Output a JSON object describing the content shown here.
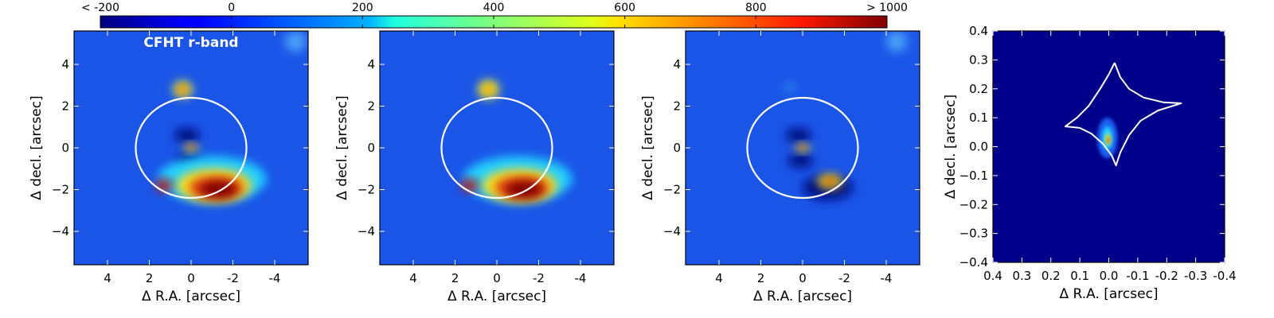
{
  "chart_data": {
    "type": "heatmap",
    "figure_description_free": true,
    "colormap": "jet",
    "colorbar": {
      "min": -200,
      "max": 1000,
      "ticks": [
        {
          "value": -200,
          "label": "< -200"
        },
        {
          "value": 0,
          "label": "0"
        },
        {
          "value": 200,
          "label": "200"
        },
        {
          "value": 400,
          "label": "400"
        },
        {
          "value": 600,
          "label": "600"
        },
        {
          "value": 800,
          "label": "800"
        },
        {
          "value": 1000,
          "label": "> 1000"
        }
      ]
    },
    "panels": [
      {
        "id": "observed",
        "title": "CFHT r-band",
        "xlabel": "Δ R.A. [arcsec]",
        "ylabel": "Δ decl. [arcsec]",
        "xlim": [
          5.6,
          -5.6
        ],
        "ylim": [
          -5.6,
          5.6
        ],
        "xticks": [
          4,
          2,
          0,
          -2,
          -4
        ],
        "yticks": [
          4,
          2,
          0,
          -2,
          -4
        ],
        "background": "#1a55e8",
        "circle": {
          "cx": 0,
          "cy": 0,
          "r": 2.5
        },
        "features": [
          {
            "x": 0.4,
            "y": 2.8,
            "rx": 0.45,
            "ry": 0.4,
            "color": "#f0f020"
          },
          {
            "x": 0.4,
            "y": 2.8,
            "rx": 0.2,
            "ry": 0.18,
            "color": "#e03010"
          },
          {
            "x": 0.2,
            "y": 0.6,
            "rx": 0.6,
            "ry": 0.35,
            "color": "#000a80"
          },
          {
            "x": 0.1,
            "y": -0.6,
            "rx": 0.6,
            "ry": 0.35,
            "color": "#000a80"
          },
          {
            "x": 0.0,
            "y": 0.0,
            "rx": 0.35,
            "ry": 0.2,
            "color": "#f0e020"
          },
          {
            "x": 0.0,
            "y": 0.0,
            "rx": 0.15,
            "ry": 0.1,
            "color": "#c01010"
          },
          {
            "x": -1.0,
            "y": -1.5,
            "rx": 2.6,
            "ry": 1.1,
            "color": "#22d0ff"
          },
          {
            "x": -1.1,
            "y": -1.8,
            "rx": 1.8,
            "ry": 0.8,
            "color": "#f8e020"
          },
          {
            "x": -1.2,
            "y": -1.9,
            "rx": 1.3,
            "ry": 0.55,
            "color": "#e04010"
          },
          {
            "x": -1.3,
            "y": -2.0,
            "rx": 0.9,
            "ry": 0.4,
            "color": "#800000"
          },
          {
            "x": 1.3,
            "y": -1.8,
            "rx": 0.4,
            "ry": 0.3,
            "color": "#c01010"
          },
          {
            "x": -5.0,
            "y": 5.1,
            "rx": 0.5,
            "ry": 0.5,
            "color": "#4aa0f8"
          }
        ]
      },
      {
        "id": "model",
        "title": "",
        "xlabel": "Δ R.A. [arcsec]",
        "ylabel": "Δ decl. [arcsec]",
        "xlim": [
          5.6,
          -5.6
        ],
        "ylim": [
          -5.6,
          5.6
        ],
        "xticks": [
          4,
          2,
          0,
          -2,
          -4
        ],
        "yticks": [
          4,
          2,
          0,
          -2,
          -4
        ],
        "background": "#1a55e8",
        "circle": {
          "cx": 0,
          "cy": 0,
          "r": 2.5
        },
        "features": [
          {
            "x": 0.4,
            "y": 2.8,
            "rx": 0.5,
            "ry": 0.45,
            "color": "#f0f020"
          },
          {
            "x": 0.4,
            "y": 2.8,
            "rx": 0.25,
            "ry": 0.2,
            "color": "#f08010"
          },
          {
            "x": -1.0,
            "y": -1.5,
            "rx": 2.6,
            "ry": 1.1,
            "color": "#22d0ff"
          },
          {
            "x": -1.1,
            "y": -1.8,
            "rx": 1.8,
            "ry": 0.8,
            "color": "#f8e020"
          },
          {
            "x": -1.2,
            "y": -1.9,
            "rx": 1.3,
            "ry": 0.55,
            "color": "#e04010"
          },
          {
            "x": -1.3,
            "y": -2.0,
            "rx": 0.9,
            "ry": 0.4,
            "color": "#800000"
          },
          {
            "x": 1.3,
            "y": -1.8,
            "rx": 0.4,
            "ry": 0.3,
            "color": "#c01010"
          }
        ]
      },
      {
        "id": "residual",
        "title": "",
        "xlabel": "Δ R.A. [arcsec]",
        "ylabel": "Δ decl. [arcsec]",
        "xlim": [
          5.6,
          -5.6
        ],
        "ylim": [
          -5.6,
          5.6
        ],
        "xticks": [
          4,
          2,
          0,
          -2,
          -4
        ],
        "yticks": [
          4,
          2,
          0,
          -2,
          -4
        ],
        "background": "#1a55e8",
        "circle": {
          "cx": 0,
          "cy": 0,
          "r": 2.5
        },
        "features": [
          {
            "x": 0.2,
            "y": 0.6,
            "rx": 0.6,
            "ry": 0.35,
            "color": "#000a80"
          },
          {
            "x": 0.1,
            "y": -0.6,
            "rx": 0.6,
            "ry": 0.35,
            "color": "#000a80"
          },
          {
            "x": 0.0,
            "y": 0.0,
            "rx": 0.35,
            "ry": 0.2,
            "color": "#f0e020"
          },
          {
            "x": 0.0,
            "y": 0.0,
            "rx": 0.15,
            "ry": 0.1,
            "color": "#c01010"
          },
          {
            "x": -1.2,
            "y": -1.9,
            "rx": 1.2,
            "ry": 0.6,
            "color": "#000a80"
          },
          {
            "x": -1.3,
            "y": -1.6,
            "rx": 0.6,
            "ry": 0.35,
            "color": "#f0e020"
          },
          {
            "x": -1.3,
            "y": -1.6,
            "rx": 0.25,
            "ry": 0.15,
            "color": "#c01010"
          },
          {
            "x": 0.6,
            "y": 2.9,
            "rx": 0.3,
            "ry": 0.25,
            "color": "#2a80f0"
          },
          {
            "x": -4.5,
            "y": 5.1,
            "rx": 0.5,
            "ry": 0.5,
            "color": "#4aa0f8"
          }
        ]
      },
      {
        "id": "source",
        "title": "",
        "xlabel": "Δ R.A. [arcsec]",
        "ylabel": "Δ decl. [arcsec]",
        "xlim": [
          0.4,
          -0.4
        ],
        "ylim": [
          -0.4,
          0.4
        ],
        "xticks": [
          0.4,
          0.3,
          0.2,
          0.1,
          0.0,
          -0.1,
          -0.2,
          -0.3,
          -0.4
        ],
        "xtick_labels": [
          "0.4",
          "0.3",
          "0.2",
          "0.1",
          "0.0",
          "-0.1",
          "-0.2",
          "-0.3",
          "-0.4"
        ],
        "yticks": [
          0.4,
          0.3,
          0.2,
          0.1,
          0.0,
          -0.1,
          -0.2,
          -0.3,
          -0.4
        ],
        "ytick_labels": [
          "0.4",
          "0.3",
          "0.2",
          "0.1",
          "0.0",
          "−0.1",
          "−0.2",
          "−0.3",
          "−0.4"
        ],
        "background": "#00008a",
        "features": [
          {
            "x": 0.005,
            "y": 0.03,
            "rx": 0.035,
            "ry": 0.07,
            "color": "#1a60f0"
          },
          {
            "x": 0.005,
            "y": 0.03,
            "rx": 0.018,
            "ry": 0.04,
            "color": "#20d0ff"
          },
          {
            "x": 0.003,
            "y": 0.025,
            "rx": 0.009,
            "ry": 0.02,
            "color": "#f0e020"
          },
          {
            "x": 0.002,
            "y": 0.022,
            "rx": 0.004,
            "ry": 0.01,
            "color": "#e03010"
          }
        ],
        "caustic": [
          [
            -0.02,
            0.29
          ],
          [
            0.0,
            0.25
          ],
          [
            0.03,
            0.2
          ],
          [
            0.07,
            0.14
          ],
          [
            0.11,
            0.1
          ],
          [
            0.15,
            0.07
          ],
          [
            0.1,
            0.065
          ],
          [
            0.06,
            0.045
          ],
          [
            0.02,
            0.01
          ],
          [
            -0.01,
            -0.03
          ],
          [
            -0.025,
            -0.065
          ],
          [
            -0.04,
            -0.02
          ],
          [
            -0.07,
            0.04
          ],
          [
            -0.11,
            0.09
          ],
          [
            -0.17,
            0.125
          ],
          [
            -0.25,
            0.15
          ],
          [
            -0.19,
            0.153
          ],
          [
            -0.12,
            0.17
          ],
          [
            -0.07,
            0.2
          ],
          [
            -0.04,
            0.24
          ],
          [
            -0.02,
            0.29
          ]
        ]
      }
    ]
  }
}
